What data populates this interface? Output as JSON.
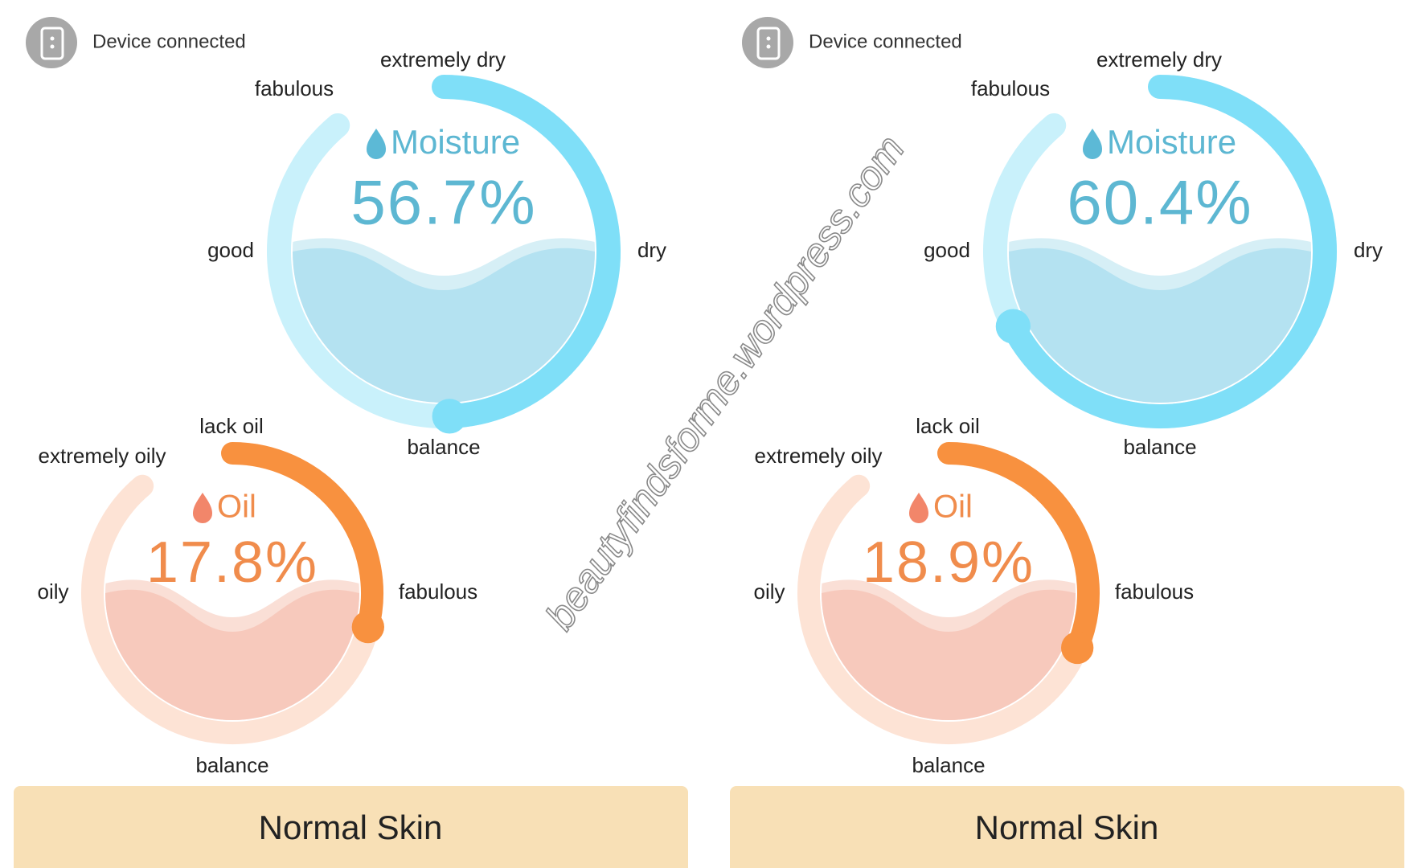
{
  "panels": [
    {
      "device_status": "Device connected",
      "moisture": {
        "title": "Moisture",
        "value": "56.7%",
        "labels": {
          "top": "extremely dry",
          "upper_left": "fabulous",
          "left": "good",
          "right": "dry",
          "bottom": "balance"
        }
      },
      "oil": {
        "title": "Oil",
        "value": "17.8%",
        "labels": {
          "top": "lack oil",
          "upper_left": "extremely oily",
          "left": "oily",
          "right": "fabulous",
          "bottom": "balance"
        }
      },
      "skin_type": "Normal Skin"
    },
    {
      "device_status": "Device connected",
      "moisture": {
        "title": "Moisture",
        "value": "60.4%",
        "labels": {
          "top": "extremely dry",
          "upper_left": "fabulous",
          "left": "good",
          "right": "dry",
          "bottom": "balance"
        }
      },
      "oil": {
        "title": "Oil",
        "value": "18.9%",
        "labels": {
          "top": "lack oil",
          "upper_left": "extremely oily",
          "left": "oily",
          "right": "fabulous",
          "bottom": "balance"
        }
      },
      "skin_type": "Normal Skin"
    }
  ],
  "watermark": "beautyfindsforme.wordpress.com"
}
